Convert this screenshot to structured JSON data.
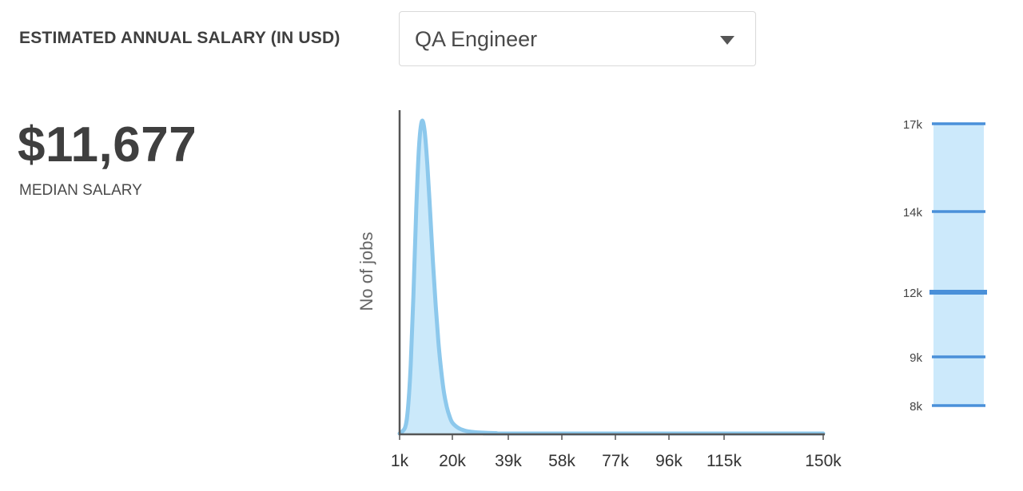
{
  "header": {
    "title": "ESTIMATED ANNUAL SALARY (IN USD)",
    "job_select": {
      "value": "QA Engineer",
      "caret_icon": "caret-down-icon"
    }
  },
  "summary": {
    "median_value": "$11,677",
    "median_label": "MEDIAN SALARY"
  },
  "colors": {
    "curve_stroke": "#8cc8ec",
    "curve_fill": "#cbe9fa",
    "bar_fill": "#cce9fb",
    "percentile_line": "#4a90d9",
    "axis": "#555555"
  },
  "chart_data": [
    {
      "type": "area",
      "title": "",
      "xlabel": "",
      "ylabel": "No of jobs",
      "x_ticks": [
        "1k",
        "20k",
        "39k",
        "58k",
        "77k",
        "96k",
        "115k",
        "150k"
      ],
      "xlim": [
        1000,
        150000
      ],
      "x_values": [
        1000,
        3000,
        4000,
        5000,
        6000,
        7000,
        8000,
        9000,
        10000,
        11000,
        12000,
        13000,
        14000,
        15000,
        16000,
        17000,
        18000,
        19000,
        20000,
        22000,
        24000,
        26000,
        28000,
        30000,
        35000,
        40000,
        150000
      ],
      "y_values": [
        0,
        0.02,
        0.08,
        0.22,
        0.45,
        0.72,
        0.92,
        1.0,
        0.97,
        0.86,
        0.71,
        0.55,
        0.41,
        0.29,
        0.2,
        0.13,
        0.085,
        0.055,
        0.035,
        0.018,
        0.01,
        0.006,
        0.004,
        0.003,
        0.001,
        0.0,
        0.0
      ],
      "grid": false,
      "legend": "none"
    },
    {
      "type": "bar",
      "title": "",
      "percentiles": [
        {
          "label": "17k",
          "value": 17000,
          "emphasis": false
        },
        {
          "label": "14k",
          "value": 14000,
          "emphasis": false
        },
        {
          "label": "12k",
          "value": 12000,
          "emphasis": true
        },
        {
          "label": "9k",
          "value": 9000,
          "emphasis": false
        },
        {
          "label": "8k",
          "value": 8000,
          "emphasis": false
        }
      ],
      "ylim": [
        8000,
        17000
      ]
    }
  ]
}
